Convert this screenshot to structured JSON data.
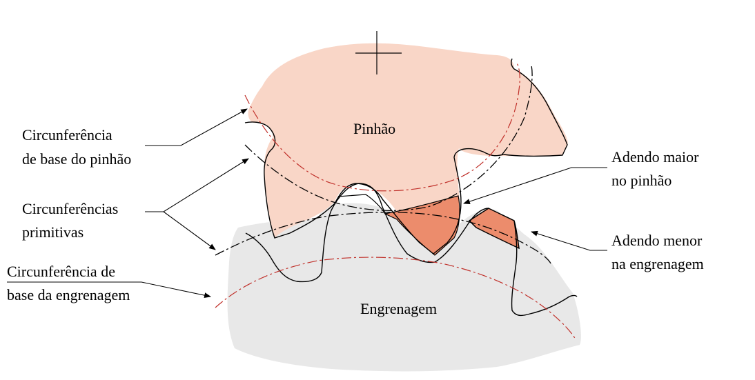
{
  "labels": {
    "pinion": "Pinhão",
    "gear": "Engrenagem",
    "pinion_base_circle": [
      "Circunferência",
      "de base do pinhão"
    ],
    "pitch_circles": [
      "Circunferências",
      "primitivas"
    ],
    "gear_base_circle": [
      "Circunferência de",
      "base da engrenagem"
    ],
    "larger_addendum": [
      "Adendo maior",
      "no pinhão"
    ],
    "smaller_addendum": [
      "Adendo menor",
      "na engrenagem"
    ]
  },
  "colors": {
    "pinion_fill": "#f9d6c7",
    "gear_fill": "#e8e8e8",
    "addendum_fill": "#ec8c6c",
    "base_circle": "#c0302a",
    "outline": "#000000"
  }
}
